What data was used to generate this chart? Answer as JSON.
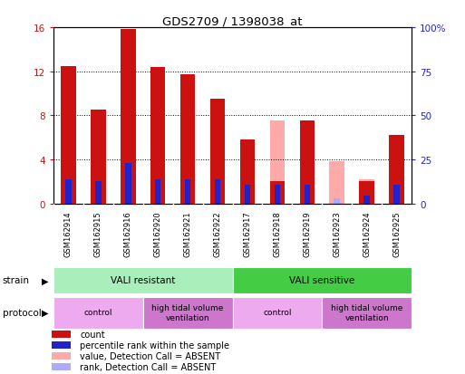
{
  "title": "GDS2709 / 1398038_at",
  "samples": [
    "GSM162914",
    "GSM162915",
    "GSM162916",
    "GSM162920",
    "GSM162921",
    "GSM162922",
    "GSM162917",
    "GSM162918",
    "GSM162919",
    "GSM162923",
    "GSM162924",
    "GSM162925"
  ],
  "count_values": [
    12.5,
    8.5,
    15.8,
    12.4,
    11.7,
    9.5,
    5.8,
    2.0,
    7.5,
    0.0,
    2.0,
    6.2
  ],
  "rank_values": [
    2.2,
    2.0,
    3.7,
    2.2,
    2.2,
    2.2,
    1.7,
    1.7,
    1.7,
    0.0,
    0.7,
    1.7
  ],
  "absent_count": [
    0.0,
    0.0,
    0.0,
    0.0,
    0.0,
    0.0,
    0.0,
    7.5,
    0.0,
    3.8,
    2.2,
    0.0
  ],
  "absent_rank": [
    0.0,
    0.0,
    0.0,
    0.0,
    0.0,
    0.0,
    0.0,
    1.5,
    0.0,
    0.5,
    0.5,
    0.0
  ],
  "count_color": "#cc1111",
  "rank_color": "#2222cc",
  "absent_count_color": "#ffaaaa",
  "absent_rank_color": "#aaaaff",
  "ylim_left": [
    0,
    16
  ],
  "ylim_right": [
    0,
    100
  ],
  "yticks_left": [
    0,
    4,
    8,
    12,
    16
  ],
  "yticks_right": [
    0,
    25,
    50,
    75,
    100
  ],
  "yticklabels_right": [
    "0",
    "25",
    "50",
    "75",
    "100%"
  ],
  "strain_groups": [
    {
      "text": "VALI resistant",
      "start": 0,
      "end": 5,
      "color": "#aaeebb"
    },
    {
      "text": "VALI sensitive",
      "start": 6,
      "end": 11,
      "color": "#44cc44"
    }
  ],
  "protocol_groups": [
    {
      "text": "control",
      "start": 0,
      "end": 2,
      "color": "#eeaaee"
    },
    {
      "text": "high tidal volume\nventilation",
      "start": 3,
      "end": 5,
      "color": "#cc77cc"
    },
    {
      "text": "control",
      "start": 6,
      "end": 8,
      "color": "#eeaaee"
    },
    {
      "text": "high tidal volume\nventilation",
      "start": 9,
      "end": 11,
      "color": "#cc77cc"
    }
  ],
  "legend_items": [
    {
      "label": "count",
      "color": "#cc1111"
    },
    {
      "label": "percentile rank within the sample",
      "color": "#2222cc"
    },
    {
      "label": "value, Detection Call = ABSENT",
      "color": "#ffaaaa"
    },
    {
      "label": "rank, Detection Call = ABSENT",
      "color": "#aaaaff"
    }
  ],
  "bar_width": 0.5,
  "background_color": "#ffffff",
  "left_tick_color": "#cc1111",
  "right_tick_color": "#2222cc"
}
